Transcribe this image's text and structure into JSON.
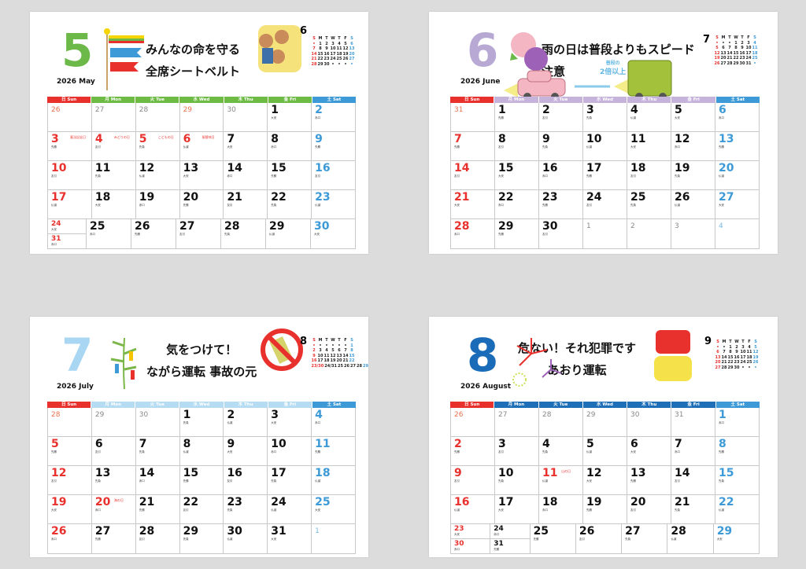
{
  "weekday_headers": [
    "日 Sun",
    "月 Mon",
    "火 Tue",
    "水 Wed",
    "木 Thu",
    "金 Fri",
    "土 Sat"
  ],
  "mini_headers": [
    "S",
    "M",
    "T",
    "W",
    "T",
    "F",
    "S"
  ],
  "colors": {
    "sunday": "#e8302d",
    "saturday": "#3d9ad6"
  },
  "months": [
    {
      "number": "5",
      "year_label": "2026 May",
      "color": "#6cb94a",
      "header_color": "#6dbb45",
      "slogan": [
        "みんなの命を守る",
        "全席シートベルト"
      ],
      "illustration": "koinobori-and-family-in-car",
      "next": {
        "number": "6",
        "rows": [
          [
            "•",
            "1",
            "2",
            "3",
            "4",
            "5",
            "6"
          ],
          [
            "7",
            "8",
            "9",
            "10",
            "11",
            "12",
            "13"
          ],
          [
            "14",
            "15",
            "16",
            "17",
            "18",
            "19",
            "20"
          ],
          [
            "21",
            "22",
            "23",
            "24",
            "25",
            "26",
            "27"
          ],
          [
            "28",
            "29",
            "30",
            "•",
            "•",
            "•",
            "•"
          ]
        ]
      },
      "weeks": [
        [
          [
            26,
            "prev sun"
          ],
          [
            27,
            "prev"
          ],
          [
            28,
            "prev"
          ],
          [
            29,
            "prev hol"
          ],
          [
            30,
            "prev"
          ],
          [
            1,
            "wk",
            "大安"
          ],
          [
            2,
            "sat",
            "赤口"
          ]
        ],
        [
          [
            3,
            "sun",
            "先勝",
            "憲法記念日"
          ],
          [
            4,
            "hol",
            "友引",
            "みどりの日"
          ],
          [
            5,
            "hol",
            "先負",
            "こどもの日"
          ],
          [
            6,
            "hol",
            "仏滅",
            "振替休日"
          ],
          [
            7,
            "wk",
            "大安"
          ],
          [
            8,
            "wk",
            "赤口"
          ],
          [
            9,
            "sat",
            "先勝"
          ]
        ],
        [
          [
            10,
            "sun",
            "友引"
          ],
          [
            11,
            "wk",
            "先負"
          ],
          [
            12,
            "wk",
            "仏滅"
          ],
          [
            13,
            "wk",
            "大安"
          ],
          [
            14,
            "wk",
            "赤口"
          ],
          [
            15,
            "wk",
            "先勝"
          ],
          [
            16,
            "sat",
            "友引"
          ]
        ],
        [
          [
            17,
            "sun",
            "仏滅"
          ],
          [
            18,
            "wk",
            "大安"
          ],
          [
            19,
            "wk",
            "赤口"
          ],
          [
            20,
            "wk",
            "先勝"
          ],
          [
            21,
            "wk",
            "友引"
          ],
          [
            22,
            "wk",
            "先負"
          ],
          [
            23,
            "sat",
            "仏滅"
          ]
        ],
        [
          {
            "split": [
              [
                24,
                "sun",
                "大安"
              ],
              [
                31,
                "sun",
                "赤口"
              ]
            ]
          },
          [
            25,
            "wk",
            "赤口"
          ],
          [
            26,
            "wk",
            "先勝"
          ],
          [
            27,
            "wk",
            "友引"
          ],
          [
            28,
            "wk",
            "先負"
          ],
          [
            29,
            "wk",
            "仏滅"
          ],
          [
            30,
            "sat",
            "大安"
          ]
        ]
      ]
    },
    {
      "number": "6",
      "year_label": "2026 June",
      "color": "#b8a9d4",
      "header_color": "#c5b3dc",
      "slogan": [
        "雨の日は普段よりもスピード",
        "注意"
      ],
      "illustration": "hydrangea-and-cars-distance",
      "distance_note": [
        "普段の",
        "2倍以上"
      ],
      "next": {
        "number": "7",
        "rows": [
          [
            "•",
            "•",
            "•",
            "1",
            "2",
            "3",
            "4"
          ],
          [
            "5",
            "6",
            "7",
            "8",
            "9",
            "10",
            "11"
          ],
          [
            "12",
            "13",
            "14",
            "15",
            "16",
            "17",
            "18"
          ],
          [
            "19",
            "20",
            "21",
            "22",
            "23",
            "24",
            "25"
          ],
          [
            "26",
            "27",
            "28",
            "29",
            "30",
            "31",
            "•"
          ]
        ]
      },
      "weeks": [
        [
          [
            31,
            "prev sun"
          ],
          [
            1,
            "wk",
            "先勝"
          ],
          [
            2,
            "wk",
            "友引"
          ],
          [
            3,
            "wk",
            "先負"
          ],
          [
            4,
            "wk",
            "仏滅"
          ],
          [
            5,
            "wk",
            "大安"
          ],
          [
            6,
            "sat",
            "赤口"
          ]
        ],
        [
          [
            7,
            "sun",
            "先勝"
          ],
          [
            8,
            "wk",
            "友引"
          ],
          [
            9,
            "wk",
            "先負"
          ],
          [
            10,
            "wk",
            "仏滅"
          ],
          [
            11,
            "wk",
            "大安"
          ],
          [
            12,
            "wk",
            "赤口"
          ],
          [
            13,
            "sat",
            "先勝"
          ]
        ],
        [
          [
            14,
            "sun",
            "友引"
          ],
          [
            15,
            "wk",
            "大安"
          ],
          [
            16,
            "wk",
            "赤口"
          ],
          [
            17,
            "wk",
            "先勝"
          ],
          [
            18,
            "wk",
            "友引"
          ],
          [
            19,
            "wk",
            "先負"
          ],
          [
            20,
            "sat",
            "仏滅"
          ]
        ],
        [
          [
            21,
            "sun",
            "大安"
          ],
          [
            22,
            "wk",
            "赤口"
          ],
          [
            23,
            "wk",
            "先勝"
          ],
          [
            24,
            "wk",
            "友引"
          ],
          [
            25,
            "wk",
            "先負"
          ],
          [
            26,
            "wk",
            "仏滅"
          ],
          [
            27,
            "sat",
            "大安"
          ]
        ],
        [
          [
            28,
            "sun",
            "赤口"
          ],
          [
            29,
            "wk",
            "先勝"
          ],
          [
            30,
            "wk",
            "友引"
          ],
          [
            1,
            "next"
          ],
          [
            2,
            "next"
          ],
          [
            3,
            "next"
          ],
          [
            4,
            "next sat"
          ]
        ]
      ]
    },
    {
      "number": "7",
      "year_label": "2026 July",
      "color": "#a9d6f2",
      "header_color": "#b5dcf2",
      "slogan": [
        "気をつけて！",
        "ながら運転 事故の元"
      ],
      "illustration": "tanabata-and-no-phone",
      "next": {
        "number": "8",
        "rows": [
          [
            "•",
            "•",
            "•",
            "•",
            "•",
            "•",
            "1"
          ],
          [
            "2",
            "3",
            "4",
            "5",
            "6",
            "7",
            "8"
          ],
          [
            "9",
            "10",
            "11",
            "12",
            "13",
            "14",
            "15"
          ],
          [
            "16",
            "17",
            "18",
            "19",
            "20",
            "21",
            "22"
          ],
          [
            "23/30",
            "24/31",
            "25",
            "26",
            "27",
            "28",
            "29"
          ]
        ]
      },
      "weeks": [
        [
          [
            28,
            "prev sun"
          ],
          [
            29,
            "prev"
          ],
          [
            30,
            "prev"
          ],
          [
            1,
            "wk",
            "先負"
          ],
          [
            2,
            "wk",
            "仏滅"
          ],
          [
            3,
            "wk",
            "大安"
          ],
          [
            4,
            "sat",
            "赤口"
          ]
        ],
        [
          [
            5,
            "sun",
            "先勝"
          ],
          [
            6,
            "wk",
            "友引"
          ],
          [
            7,
            "wk",
            "先負"
          ],
          [
            8,
            "wk",
            "仏滅"
          ],
          [
            9,
            "wk",
            "大安"
          ],
          [
            10,
            "wk",
            "赤口"
          ],
          [
            11,
            "sat",
            "先勝"
          ]
        ],
        [
          [
            12,
            "sun",
            "友引"
          ],
          [
            13,
            "wk",
            "先負"
          ],
          [
            14,
            "wk",
            "赤口"
          ],
          [
            15,
            "wk",
            "先勝"
          ],
          [
            16,
            "wk",
            "友引"
          ],
          [
            17,
            "wk",
            "先負"
          ],
          [
            18,
            "sat",
            "仏滅"
          ]
        ],
        [
          [
            19,
            "sun",
            "大安"
          ],
          [
            20,
            "hol",
            "赤口",
            "海の日"
          ],
          [
            21,
            "wk",
            "先勝"
          ],
          [
            22,
            "wk",
            "友引"
          ],
          [
            23,
            "wk",
            "先負"
          ],
          [
            24,
            "wk",
            "仏滅"
          ],
          [
            25,
            "sat",
            "大安"
          ]
        ],
        [
          [
            26,
            "sun",
            "赤口"
          ],
          [
            27,
            "wk",
            "先勝"
          ],
          [
            28,
            "wk",
            "友引"
          ],
          [
            29,
            "wk",
            "先負"
          ],
          [
            30,
            "wk",
            "仏滅"
          ],
          [
            31,
            "wk",
            "大安"
          ],
          [
            1,
            "next sat"
          ]
        ]
      ]
    },
    {
      "number": "8",
      "year_label": "2026 August",
      "color": "#1a6bb8",
      "header_color": "#1f6fb8",
      "slogan": [
        "危ない！それ犯罪です",
        "あおり運転"
      ],
      "illustration": "fireworks-and-tailgating-cars",
      "next": {
        "number": "9",
        "rows": [
          [
            "•",
            "•",
            "1",
            "2",
            "3",
            "4",
            "5"
          ],
          [
            "6",
            "7",
            "8",
            "9",
            "10",
            "11",
            "12"
          ],
          [
            "13",
            "14",
            "15",
            "16",
            "17",
            "18",
            "19"
          ],
          [
            "20",
            "21",
            "22",
            "23",
            "24",
            "25",
            "26"
          ],
          [
            "27",
            "28",
            "29",
            "30",
            "•",
            "•",
            "•"
          ]
        ]
      },
      "weeks": [
        [
          [
            26,
            "prev sun"
          ],
          [
            27,
            "prev"
          ],
          [
            28,
            "prev"
          ],
          [
            29,
            "prev"
          ],
          [
            30,
            "prev"
          ],
          [
            31,
            "prev"
          ],
          [
            1,
            "sat",
            "赤口"
          ]
        ],
        [
          [
            2,
            "sun",
            "先勝"
          ],
          [
            3,
            "wk",
            "友引"
          ],
          [
            4,
            "wk",
            "先負"
          ],
          [
            5,
            "wk",
            "仏滅"
          ],
          [
            6,
            "wk",
            "大安"
          ],
          [
            7,
            "wk",
            "赤口"
          ],
          [
            8,
            "sat",
            "先勝"
          ]
        ],
        [
          [
            9,
            "sun",
            "友引"
          ],
          [
            10,
            "wk",
            "先負"
          ],
          [
            11,
            "hol",
            "仏滅",
            "山の日"
          ],
          [
            12,
            "wk",
            "大安"
          ],
          [
            13,
            "wk",
            "先勝"
          ],
          [
            14,
            "wk",
            "友引"
          ],
          [
            15,
            "sat",
            "先負"
          ]
        ],
        [
          [
            16,
            "sun",
            "仏滅"
          ],
          [
            17,
            "wk",
            "大安"
          ],
          [
            18,
            "wk",
            "赤口"
          ],
          [
            19,
            "wk",
            "先勝"
          ],
          [
            20,
            "wk",
            "友引"
          ],
          [
            21,
            "wk",
            "先負"
          ],
          [
            22,
            "sat",
            "仏滅"
          ]
        ],
        [
          {
            "split": [
              [
                23,
                "sun",
                "大安"
              ],
              [
                30,
                "sun",
                "赤口"
              ]
            ]
          },
          {
            "split": [
              [
                24,
                "wk",
                "赤口"
              ],
              [
                31,
                "wk",
                "先勝"
              ]
            ]
          },
          [
            25,
            "wk",
            "先勝"
          ],
          [
            26,
            "wk",
            "友引"
          ],
          [
            27,
            "wk",
            "先負"
          ],
          [
            28,
            "wk",
            "仏滅"
          ],
          [
            29,
            "sat",
            "大安"
          ]
        ]
      ]
    }
  ]
}
